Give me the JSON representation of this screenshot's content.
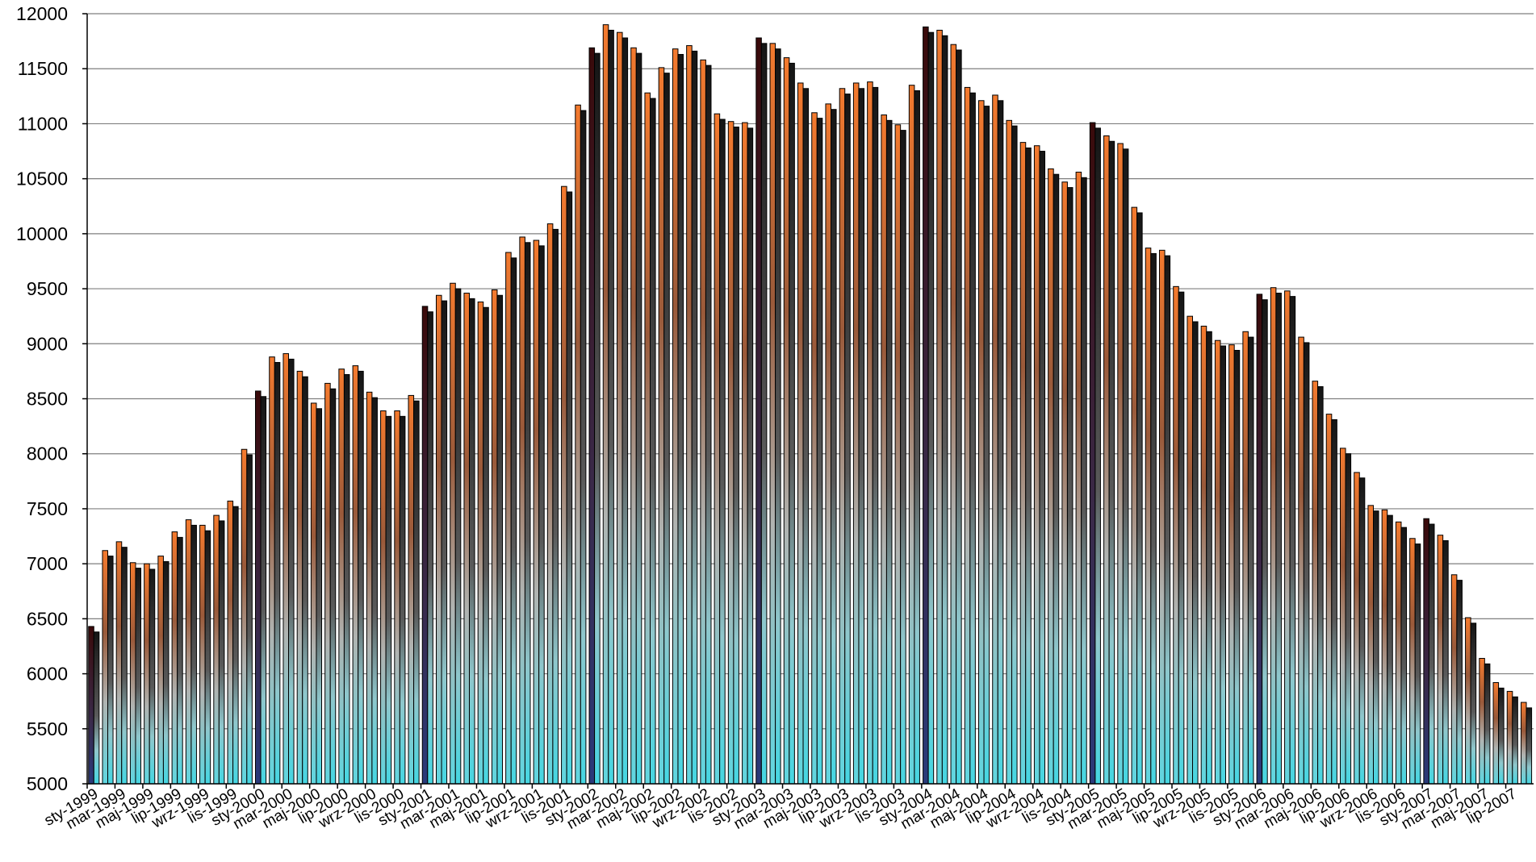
{
  "chart_data": {
    "type": "bar",
    "ylim": [
      5000,
      12000
    ],
    "y_ticks": [
      "5000",
      "5500",
      "6000",
      "6500",
      "7000",
      "7500",
      "8000",
      "8500",
      "9000",
      "9500",
      "10000",
      "10500",
      "11000",
      "11500",
      "12000"
    ],
    "x_tick_labels": [
      "sty-1999",
      "mar-1999",
      "maj-1999",
      "lip-1999",
      "wrz-1999",
      "lis-1999",
      "sty-2000",
      "mar-2000",
      "maj-2000",
      "lip-2000",
      "wrz-2000",
      "lis-2000",
      "sty-2001",
      "mar-2001",
      "maj-2001",
      "lip-2001",
      "wrz-2001",
      "lis-2001",
      "sty-2002",
      "mar-2002",
      "maj-2002",
      "lip-2002",
      "wrz-2002",
      "lis-2002",
      "sty-2003",
      "mar-2003",
      "maj-2003",
      "lip-2003",
      "wrz-2003",
      "lis-2003",
      "sty-2004",
      "mar-2004",
      "maj-2004",
      "lip-2004",
      "wrz-2004",
      "lis-2004",
      "sty-2005",
      "mar-2005",
      "maj-2005",
      "lip-2005",
      "wrz-2005",
      "lis-2005",
      "sty-2006",
      "mar-2006",
      "maj-2006",
      "lip-2006",
      "wrz-2006",
      "lis-2006",
      "sty-2007",
      "mar-2007",
      "maj-2007",
      "lip-2007"
    ],
    "values": [
      6430,
      7120,
      7200,
      7010,
      7000,
      7070,
      7290,
      7400,
      7350,
      7440,
      7570,
      8040,
      8570,
      8880,
      8910,
      8750,
      8460,
      8640,
      8770,
      8800,
      8560,
      8390,
      8390,
      8530,
      9340,
      9440,
      9550,
      9460,
      9380,
      9490,
      9830,
      9970,
      9940,
      10090,
      10430,
      11170,
      11690,
      11900,
      11830,
      11690,
      11280,
      11510,
      11680,
      11710,
      11580,
      11090,
      11020,
      11010,
      11780,
      11730,
      11600,
      11370,
      11100,
      11180,
      11320,
      11370,
      11380,
      11080,
      10990,
      11350,
      11880,
      11850,
      11720,
      11330,
      11210,
      11260,
      11030,
      10830,
      10800,
      10590,
      10470,
      10560,
      11010,
      10890,
      10820,
      10240,
      9870,
      9850,
      9520,
      9250,
      9160,
      9030,
      8990,
      9110,
      9450,
      9510,
      9480,
      9060,
      8660,
      8360,
      8050,
      7830,
      7530,
      7490,
      7380,
      7230,
      7410,
      7260,
      6900,
      6510,
      6140,
      5920,
      5840,
      5740
    ],
    "colors": {
      "bar_orange": "#f47a2e",
      "bar_top_dark": "#1a1a1a",
      "bar_bottom_cyan": "#5fd0dc",
      "bar_dark_january": "#4a0f0f",
      "grid": "#7f7f7f",
      "axis": "#000000"
    },
    "grid": true,
    "legend": "none"
  }
}
